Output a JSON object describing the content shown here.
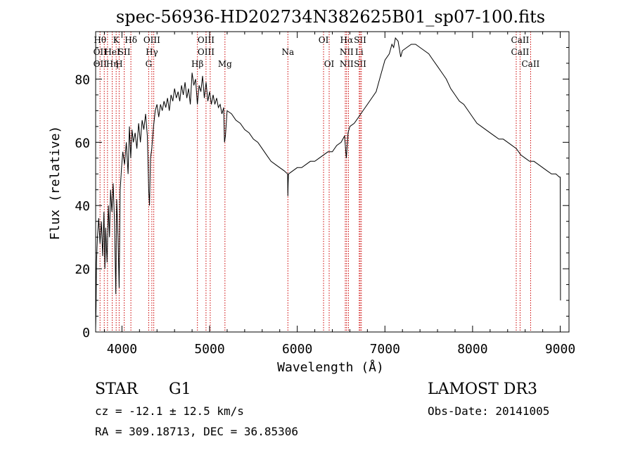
{
  "chart_data": {
    "type": "line",
    "title": "spec-56936-HD202734N382625B01_sp07-100.fits",
    "xlabel": "Wavelength (Å)",
    "ylabel": "Flux (relative)",
    "xlim": [
      3700,
      9100
    ],
    "ylim": [
      0,
      95
    ],
    "xticks": [
      4000,
      5000,
      6000,
      7000,
      8000,
      9000
    ],
    "yticks": [
      0,
      20,
      40,
      60,
      80
    ],
    "series": [
      {
        "name": "flux",
        "points": [
          [
            3700,
            1
          ],
          [
            3705,
            8
          ],
          [
            3710,
            22
          ],
          [
            3720,
            30
          ],
          [
            3735,
            36
          ],
          [
            3750,
            28
          ],
          [
            3765,
            35
          ],
          [
            3780,
            24
          ],
          [
            3795,
            38
          ],
          [
            3805,
            20
          ],
          [
            3815,
            33
          ],
          [
            3830,
            22
          ],
          [
            3845,
            40
          ],
          [
            3858,
            30
          ],
          [
            3870,
            45
          ],
          [
            3885,
            38
          ],
          [
            3900,
            47
          ],
          [
            3915,
            35
          ],
          [
            3930,
            12
          ],
          [
            3940,
            42
          ],
          [
            3955,
            30
          ],
          [
            3968,
            14
          ],
          [
            3980,
            45
          ],
          [
            3995,
            52
          ],
          [
            4010,
            57
          ],
          [
            4030,
            53
          ],
          [
            4050,
            60
          ],
          [
            4070,
            50
          ],
          [
            4085,
            65
          ],
          [
            4100,
            55
          ],
          [
            4115,
            64
          ],
          [
            4130,
            60
          ],
          [
            4150,
            63
          ],
          [
            4170,
            58
          ],
          [
            4190,
            66
          ],
          [
            4210,
            60
          ],
          [
            4230,
            67
          ],
          [
            4250,
            64
          ],
          [
            4270,
            69
          ],
          [
            4290,
            62
          ],
          [
            4305,
            45
          ],
          [
            4315,
            40
          ],
          [
            4325,
            55
          ],
          [
            4340,
            58
          ],
          [
            4360,
            65
          ],
          [
            4380,
            70
          ],
          [
            4400,
            72
          ],
          [
            4420,
            68
          ],
          [
            4440,
            72
          ],
          [
            4460,
            70
          ],
          [
            4480,
            73
          ],
          [
            4500,
            71
          ],
          [
            4520,
            74
          ],
          [
            4540,
            70
          ],
          [
            4560,
            75
          ],
          [
            4580,
            73
          ],
          [
            4600,
            77
          ],
          [
            4620,
            74
          ],
          [
            4640,
            76
          ],
          [
            4660,
            73
          ],
          [
            4680,
            78
          ],
          [
            4700,
            75
          ],
          [
            4720,
            79
          ],
          [
            4740,
            74
          ],
          [
            4760,
            77
          ],
          [
            4780,
            72
          ],
          [
            4800,
            82
          ],
          [
            4820,
            78
          ],
          [
            4840,
            80
          ],
          [
            4860,
            72
          ],
          [
            4880,
            78
          ],
          [
            4900,
            76
          ],
          [
            4920,
            81
          ],
          [
            4940,
            74
          ],
          [
            4960,
            79
          ],
          [
            4980,
            73
          ],
          [
            5000,
            76
          ],
          [
            5020,
            72
          ],
          [
            5040,
            75
          ],
          [
            5060,
            72
          ],
          [
            5080,
            74
          ],
          [
            5100,
            71
          ],
          [
            5120,
            72
          ],
          [
            5140,
            69
          ],
          [
            5160,
            71
          ],
          [
            5170,
            60
          ],
          [
            5180,
            62
          ],
          [
            5200,
            70
          ],
          [
            5250,
            69
          ],
          [
            5300,
            67
          ],
          [
            5350,
            66
          ],
          [
            5400,
            64
          ],
          [
            5450,
            63
          ],
          [
            5500,
            61
          ],
          [
            5550,
            60
          ],
          [
            5600,
            58
          ],
          [
            5650,
            56
          ],
          [
            5700,
            54
          ],
          [
            5750,
            53
          ],
          [
            5800,
            52
          ],
          [
            5850,
            51
          ],
          [
            5890,
            50
          ],
          [
            5893,
            43
          ],
          [
            5896,
            47
          ],
          [
            5900,
            50
          ],
          [
            5950,
            51
          ],
          [
            6000,
            52
          ],
          [
            6050,
            52
          ],
          [
            6100,
            53
          ],
          [
            6150,
            54
          ],
          [
            6200,
            54
          ],
          [
            6250,
            55
          ],
          [
            6300,
            56
          ],
          [
            6350,
            57
          ],
          [
            6400,
            57
          ],
          [
            6450,
            59
          ],
          [
            6500,
            60
          ],
          [
            6540,
            62
          ],
          [
            6560,
            55
          ],
          [
            6580,
            63
          ],
          [
            6600,
            65
          ],
          [
            6650,
            66
          ],
          [
            6700,
            68
          ],
          [
            6750,
            70
          ],
          [
            6800,
            72
          ],
          [
            6850,
            74
          ],
          [
            6900,
            76
          ],
          [
            6950,
            81
          ],
          [
            7000,
            86
          ],
          [
            7050,
            88
          ],
          [
            7080,
            91
          ],
          [
            7100,
            90
          ],
          [
            7120,
            93
          ],
          [
            7150,
            92
          ],
          [
            7180,
            87
          ],
          [
            7200,
            89
          ],
          [
            7250,
            90
          ],
          [
            7300,
            91
          ],
          [
            7350,
            91
          ],
          [
            7400,
            90
          ],
          [
            7450,
            89
          ],
          [
            7500,
            88
          ],
          [
            7550,
            86
          ],
          [
            7600,
            84
          ],
          [
            7650,
            82
          ],
          [
            7700,
            80
          ],
          [
            7750,
            77
          ],
          [
            7800,
            75
          ],
          [
            7850,
            73
          ],
          [
            7900,
            72
          ],
          [
            7950,
            70
          ],
          [
            8000,
            68
          ],
          [
            8050,
            66
          ],
          [
            8100,
            65
          ],
          [
            8150,
            64
          ],
          [
            8200,
            63
          ],
          [
            8250,
            62
          ],
          [
            8300,
            61
          ],
          [
            8350,
            61
          ],
          [
            8400,
            60
          ],
          [
            8450,
            59
          ],
          [
            8500,
            58
          ],
          [
            8550,
            56
          ],
          [
            8600,
            55
          ],
          [
            8650,
            54
          ],
          [
            8700,
            54
          ],
          [
            8750,
            53
          ],
          [
            8800,
            52
          ],
          [
            8850,
            51
          ],
          [
            8900,
            50
          ],
          [
            8950,
            50
          ],
          [
            8990,
            49
          ],
          [
            9000,
            49
          ],
          [
            9003,
            10
          ]
        ]
      }
    ],
    "line_markers": [
      {
        "x": 3750,
        "labels": [
          "Hθ",
          "OII",
          "OII"
        ]
      },
      {
        "x": 3798,
        "labels": []
      },
      {
        "x": 3835,
        "labels": []
      },
      {
        "x": 3889,
        "labels": [
          "",
          "HeI",
          "Hη"
        ]
      },
      {
        "x": 3934,
        "labels": [
          "K",
          "",
          ""
        ]
      },
      {
        "x": 3968,
        "labels": [
          "",
          "",
          "H"
        ]
      },
      {
        "x": 4026,
        "labels": [
          "",
          "SII",
          ""
        ]
      },
      {
        "x": 4102,
        "labels": [
          "Hδ",
          "",
          ""
        ]
      },
      {
        "x": 4305,
        "labels": [
          "",
          "",
          "G"
        ]
      },
      {
        "x": 4341,
        "labels": [
          "OIII",
          "Hγ",
          ""
        ]
      },
      {
        "x": 4363,
        "labels": []
      },
      {
        "x": 4861,
        "labels": [
          "",
          "",
          "Hβ"
        ]
      },
      {
        "x": 4959,
        "labels": [
          "OIII",
          "OIII",
          ""
        ]
      },
      {
        "x": 5007,
        "labels": []
      },
      {
        "x": 5175,
        "labels": [
          "",
          "",
          "Mg"
        ]
      },
      {
        "x": 5893,
        "labels": [
          "",
          "Na",
          ""
        ]
      },
      {
        "x": 6300,
        "labels": [
          "OI",
          "",
          ""
        ]
      },
      {
        "x": 6364,
        "labels": [
          "",
          "",
          "OI"
        ]
      },
      {
        "x": 6548,
        "labels": []
      },
      {
        "x": 6563,
        "labels": [
          "Hα",
          "NII",
          "NII"
        ]
      },
      {
        "x": 6584,
        "labels": []
      },
      {
        "x": 6707,
        "labels": [
          "",
          "Li",
          ""
        ]
      },
      {
        "x": 6717,
        "labels": [
          "SII",
          "",
          "SII"
        ]
      },
      {
        "x": 6731,
        "labels": []
      },
      {
        "x": 8498,
        "labels": []
      },
      {
        "x": 8542,
        "labels": [
          "CaII",
          "CaII",
          ""
        ]
      },
      {
        "x": 8662,
        "labels": [
          "",
          "",
          "CaII"
        ]
      }
    ],
    "colors": {
      "spectrum": "#000000",
      "markers": "#cc0000",
      "axes": "#000000"
    }
  },
  "footer": {
    "classification": "STAR",
    "subclass": "G1",
    "survey": "LAMOST DR3",
    "redshift": "cz = -12.1 ± 12.5 km/s",
    "obs_date": "Obs-Date: 20141005",
    "coords": "RA = 309.18713, DEC =  36.85306"
  }
}
